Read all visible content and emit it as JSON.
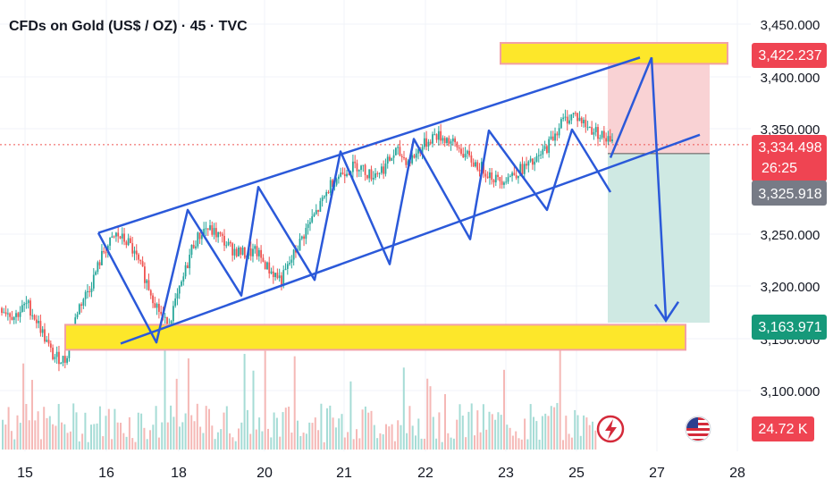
{
  "header": {
    "title": "CFDs on Gold (US$ / OZ) · 45 · TVC"
  },
  "colors": {
    "up": "#26a69a",
    "down": "#ef5350",
    "channel": "#2b59d9",
    "zone": "#fde72a",
    "zone_border": "#f2a0a6",
    "stop_fill": "#f9d2d4",
    "target_fill": "#cfe9e3",
    "price_line": "#ef5350",
    "grid": "#f0f3f8",
    "axis_text": "#131722"
  },
  "price_axis": {
    "ticks": [
      "3,450.000",
      "3,400.000",
      "3,350.000",
      "3,250.000",
      "3,200.000",
      "3,150.000",
      "3,100.000"
    ]
  },
  "badges": {
    "stop_price": "3,422.237",
    "current_price": "3,334.498",
    "countdown": "26:25",
    "entry_price": "3,325.918",
    "target_price": "3,163.971",
    "volume": "24.72 K"
  },
  "time_axis": {
    "ticks": [
      "15",
      "16",
      "18",
      "20",
      "21",
      "22",
      "23",
      "25",
      "27",
      "28"
    ]
  },
  "icons": {
    "flash": "lightning-bolt-icon",
    "flag": "us-flag-icon"
  },
  "chart_data": {
    "type": "candlestick",
    "title": "CFDs on Gold (US$ / OZ) · 45 · TVC",
    "interval": "45",
    "source": "TVC",
    "ylim": [
      3060,
      3470
    ],
    "x_categories": [
      "15",
      "16",
      "18",
      "20",
      "21",
      "22",
      "23",
      "25",
      "27",
      "28"
    ],
    "current_price": 3334.498,
    "position": {
      "entry": 3325.918,
      "stop": 3422.237,
      "target": 3163.971
    },
    "support_zone": [
      3138,
      3162
    ],
    "resistance_zone": [
      3412,
      3432
    ],
    "channel": {
      "upper_start": 3250,
      "upper_end": 3418,
      "lower_start": 3144,
      "lower_end": 3344
    },
    "projection_path": [
      3322,
      3418,
      3166
    ],
    "zigzag_points": [
      3250,
      3145,
      3272,
      3190,
      3294,
      3205,
      3328,
      3220,
      3340,
      3244,
      3348,
      3272,
      3349,
      3289,
      3385,
      3322
    ],
    "price_path": [
      3178,
      3170,
      3182,
      3160,
      3132,
      3128,
      3178,
      3200,
      3232,
      3248,
      3240,
      3215,
      3185,
      3160,
      3195,
      3238,
      3255,
      3248,
      3235,
      3230,
      3232,
      3215,
      3205,
      3230,
      3255,
      3275,
      3300,
      3310,
      3315,
      3305,
      3312,
      3328,
      3318,
      3332,
      3344,
      3340,
      3330,
      3318,
      3310,
      3300,
      3305,
      3312,
      3318,
      3335,
      3356,
      3364,
      3352,
      3345,
      3335
    ]
  }
}
